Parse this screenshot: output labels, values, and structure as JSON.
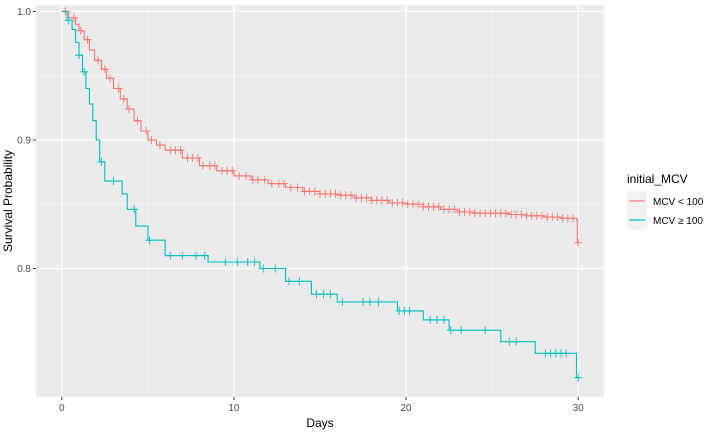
{
  "chart_data": {
    "type": "line",
    "step": true,
    "xlabel": "Days",
    "ylabel": "Survival Probability",
    "xlim": [
      -1.5,
      31.5
    ],
    "ylim": [
      0.7,
      1.005
    ],
    "x_ticks": [
      0,
      10,
      20,
      30
    ],
    "x_tick_labels": [
      "0",
      "10",
      "20",
      "30"
    ],
    "y_ticks": [
      0.8,
      0.9,
      1.0
    ],
    "y_tick_labels": [
      "0.8",
      "0.9",
      "1.0"
    ],
    "grid": true,
    "legend": {
      "title": "initial_MCV",
      "placement": "right"
    },
    "series": [
      {
        "name": "MCV < 100",
        "color": "#F8766D",
        "points": [
          [
            0,
            1.0
          ],
          [
            0.4,
            0.995
          ],
          [
            0.8,
            0.99
          ],
          [
            1.0,
            0.985
          ],
          [
            1.3,
            0.978
          ],
          [
            1.6,
            0.97
          ],
          [
            1.9,
            0.962
          ],
          [
            2.3,
            0.955
          ],
          [
            2.6,
            0.948
          ],
          [
            3.0,
            0.94
          ],
          [
            3.4,
            0.932
          ],
          [
            3.8,
            0.924
          ],
          [
            4.2,
            0.915
          ],
          [
            4.6,
            0.907
          ],
          [
            5.0,
            0.9
          ],
          [
            5.5,
            0.896
          ],
          [
            6.0,
            0.892
          ],
          [
            7.0,
            0.886
          ],
          [
            8.0,
            0.88
          ],
          [
            9.0,
            0.876
          ],
          [
            10.0,
            0.872
          ],
          [
            11.0,
            0.869
          ],
          [
            12.0,
            0.866
          ],
          [
            13.0,
            0.863
          ],
          [
            14.0,
            0.86
          ],
          [
            15.0,
            0.858
          ],
          [
            16.0,
            0.857
          ],
          [
            17.0,
            0.855
          ],
          [
            18.0,
            0.853
          ],
          [
            19.0,
            0.851
          ],
          [
            20.0,
            0.85
          ],
          [
            21.0,
            0.848
          ],
          [
            22.0,
            0.846
          ],
          [
            23.0,
            0.844
          ],
          [
            24.0,
            0.843
          ],
          [
            25.0,
            0.843
          ],
          [
            26.0,
            0.842
          ],
          [
            27.0,
            0.841
          ],
          [
            28.0,
            0.84
          ],
          [
            29.0,
            0.839
          ],
          [
            29.9,
            0.838
          ],
          [
            29.95,
            0.82
          ],
          [
            30.0,
            0.82
          ]
        ],
        "censor_x": [
          0.2,
          0.7,
          1.1,
          1.5,
          2.1,
          2.5,
          2.8,
          3.3,
          3.6,
          3.9,
          4.4,
          4.9,
          5.2,
          5.7,
          6.3,
          6.6,
          6.9,
          7.3,
          7.6,
          7.9,
          8.2,
          8.6,
          8.9,
          9.3,
          9.6,
          9.9,
          10.3,
          10.7,
          11.1,
          11.4,
          11.8,
          12.2,
          12.6,
          12.9,
          13.3,
          13.7,
          14.1,
          14.4,
          14.7,
          15.0,
          15.3,
          15.6,
          15.9,
          16.2,
          16.5,
          16.8,
          17.1,
          17.4,
          17.7,
          18.0,
          18.3,
          18.6,
          18.9,
          19.2,
          19.5,
          19.8,
          20.1,
          20.4,
          20.7,
          21.0,
          21.3,
          21.6,
          21.9,
          22.2,
          22.5,
          22.8,
          23.1,
          23.4,
          23.7,
          24.0,
          24.3,
          24.6,
          24.9,
          25.2,
          25.5,
          25.8,
          26.1,
          26.4,
          26.7,
          27.0,
          27.3,
          27.6,
          27.9,
          28.2,
          28.5,
          28.8,
          29.1,
          29.4,
          29.7,
          30.0
        ]
      },
      {
        "name": "MCV ≥ 100",
        "color": "#00BFC4",
        "points": [
          [
            0,
            1.0
          ],
          [
            0.3,
            0.993
          ],
          [
            0.6,
            0.986
          ],
          [
            0.8,
            0.976
          ],
          [
            1.0,
            0.966
          ],
          [
            1.2,
            0.953
          ],
          [
            1.4,
            0.94
          ],
          [
            1.6,
            0.928
          ],
          [
            1.8,
            0.915
          ],
          [
            2.0,
            0.9
          ],
          [
            2.2,
            0.883
          ],
          [
            2.5,
            0.868
          ],
          [
            3.5,
            0.858
          ],
          [
            3.8,
            0.846
          ],
          [
            4.3,
            0.833
          ],
          [
            5.0,
            0.822
          ],
          [
            6.0,
            0.81
          ],
          [
            8.5,
            0.805
          ],
          [
            11.5,
            0.8
          ],
          [
            13.0,
            0.79
          ],
          [
            14.5,
            0.78
          ],
          [
            16.0,
            0.774
          ],
          [
            19.5,
            0.767
          ],
          [
            21.0,
            0.76
          ],
          [
            22.5,
            0.752
          ],
          [
            25.5,
            0.743
          ],
          [
            27.5,
            0.734
          ],
          [
            29.8,
            0.734
          ],
          [
            29.9,
            0.715
          ],
          [
            30.0,
            0.715
          ]
        ],
        "censor_x": [
          0.4,
          1.0,
          1.3,
          2.3,
          3.0,
          4.2,
          5.1,
          6.3,
          7.0,
          7.8,
          8.3,
          9.5,
          10.2,
          10.8,
          11.2,
          11.7,
          12.4,
          13.2,
          13.8,
          14.8,
          15.2,
          15.6,
          16.3,
          17.5,
          17.9,
          18.4,
          19.6,
          19.9,
          20.2,
          21.4,
          21.8,
          22.2,
          22.6,
          23.2,
          24.6,
          26.0,
          26.4,
          28.1,
          28.4,
          28.7,
          29.0,
          29.3,
          30.0
        ]
      }
    ]
  }
}
